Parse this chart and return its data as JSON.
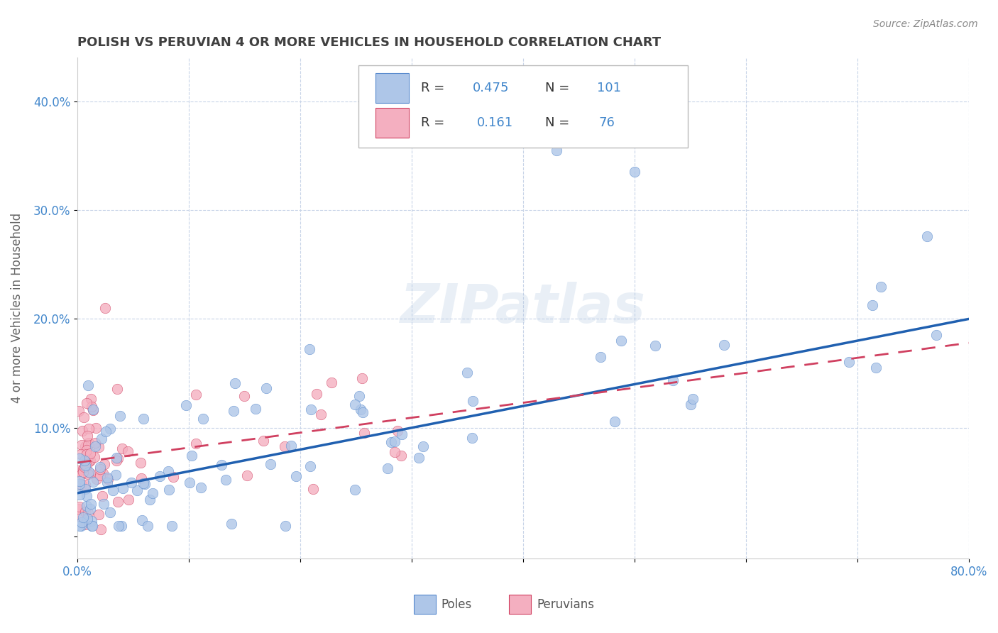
{
  "title": "POLISH VS PERUVIAN 4 OR MORE VEHICLES IN HOUSEHOLD CORRELATION CHART",
  "source": "Source: ZipAtlas.com",
  "ylabel": "4 or more Vehicles in Household",
  "poles_R": 0.475,
  "poles_N": 101,
  "peruvians_R": 0.161,
  "peruvians_N": 76,
  "poles_color": "#aec6e8",
  "peruvians_color": "#f4afc0",
  "poles_line_color": "#2060b0",
  "peruvians_line_color": "#d04060",
  "watermark": "ZIPatlas",
  "xlim": [
    0.0,
    0.8
  ],
  "ylim": [
    -0.02,
    0.44
  ],
  "background_color": "#ffffff",
  "grid_color": "#c8d4e8",
  "title_color": "#404040",
  "axis_label_color": "#4488cc",
  "poles_line_y0": 0.04,
  "poles_line_y1": 0.2,
  "peruvians_line_y0": 0.068,
  "peruvians_line_y1": 0.178
}
